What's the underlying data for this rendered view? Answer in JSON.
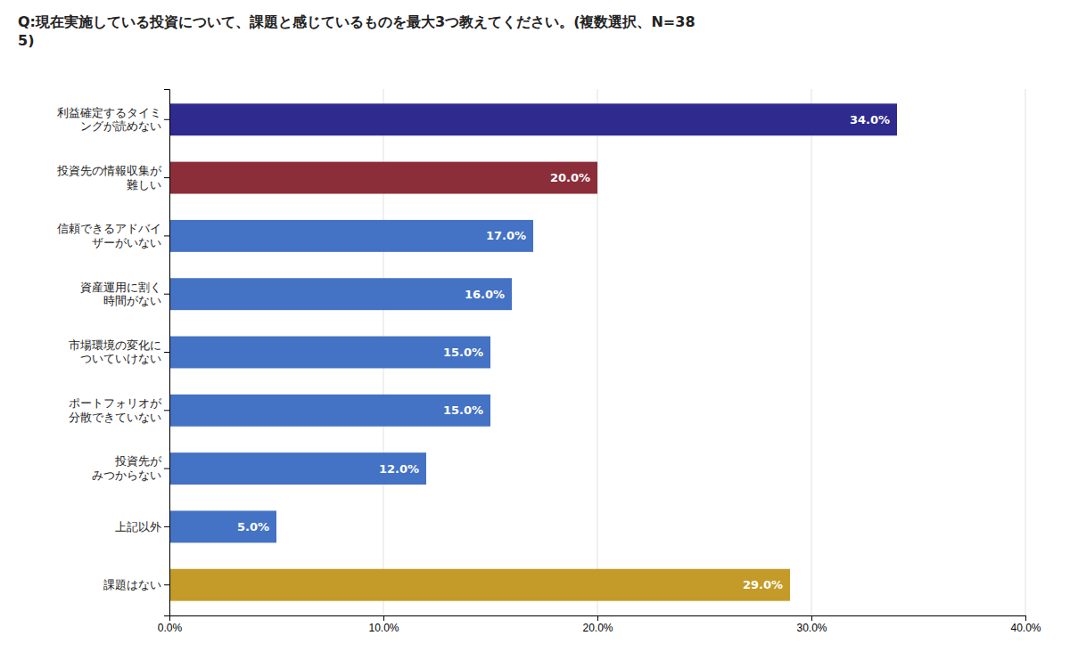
{
  "chart_data": {
    "type": "bar",
    "orientation": "horizontal",
    "title": "Q:現在実施している投資について、課題と感じているものを最大3つ教えてください。(複数選択、N=38\n5)",
    "categories": [
      "利益確定するタイミ\nングが読めない",
      "投資先の情報収集が\n難しい",
      "信頼できるアドバイ\nザーがいない",
      "資産運用に割く\n時間がない",
      "市場環境の変化に\nついていけない",
      "ポートフォリオが\n分散できていない",
      "投資先が\nみつからない",
      "上記以外",
      "課題はない"
    ],
    "values": [
      34.0,
      20.0,
      17.0,
      16.0,
      15.0,
      15.0,
      12.0,
      5.0,
      29.0
    ],
    "value_labels": [
      "34.0%",
      "20.0%",
      "17.0%",
      "16.0%",
      "15.0%",
      "15.0%",
      "12.0%",
      "5.0%",
      "29.0%"
    ],
    "data_labels": true,
    "colors": [
      "#2E2A8E",
      "#8B2E3A",
      "#4472C4",
      "#4472C4",
      "#4472C4",
      "#4472C4",
      "#4472C4",
      "#4472C4",
      "#C49A28"
    ],
    "xlim": [
      0,
      40
    ],
    "xticks": [
      {
        "value": 0,
        "label": "0.0%"
      },
      {
        "value": 10,
        "label": "10.0%"
      },
      {
        "value": 20,
        "label": "20.0%"
      },
      {
        "value": 30,
        "label": "30.0%"
      },
      {
        "value": 40,
        "label": "40.0%"
      }
    ],
    "grid": true
  }
}
